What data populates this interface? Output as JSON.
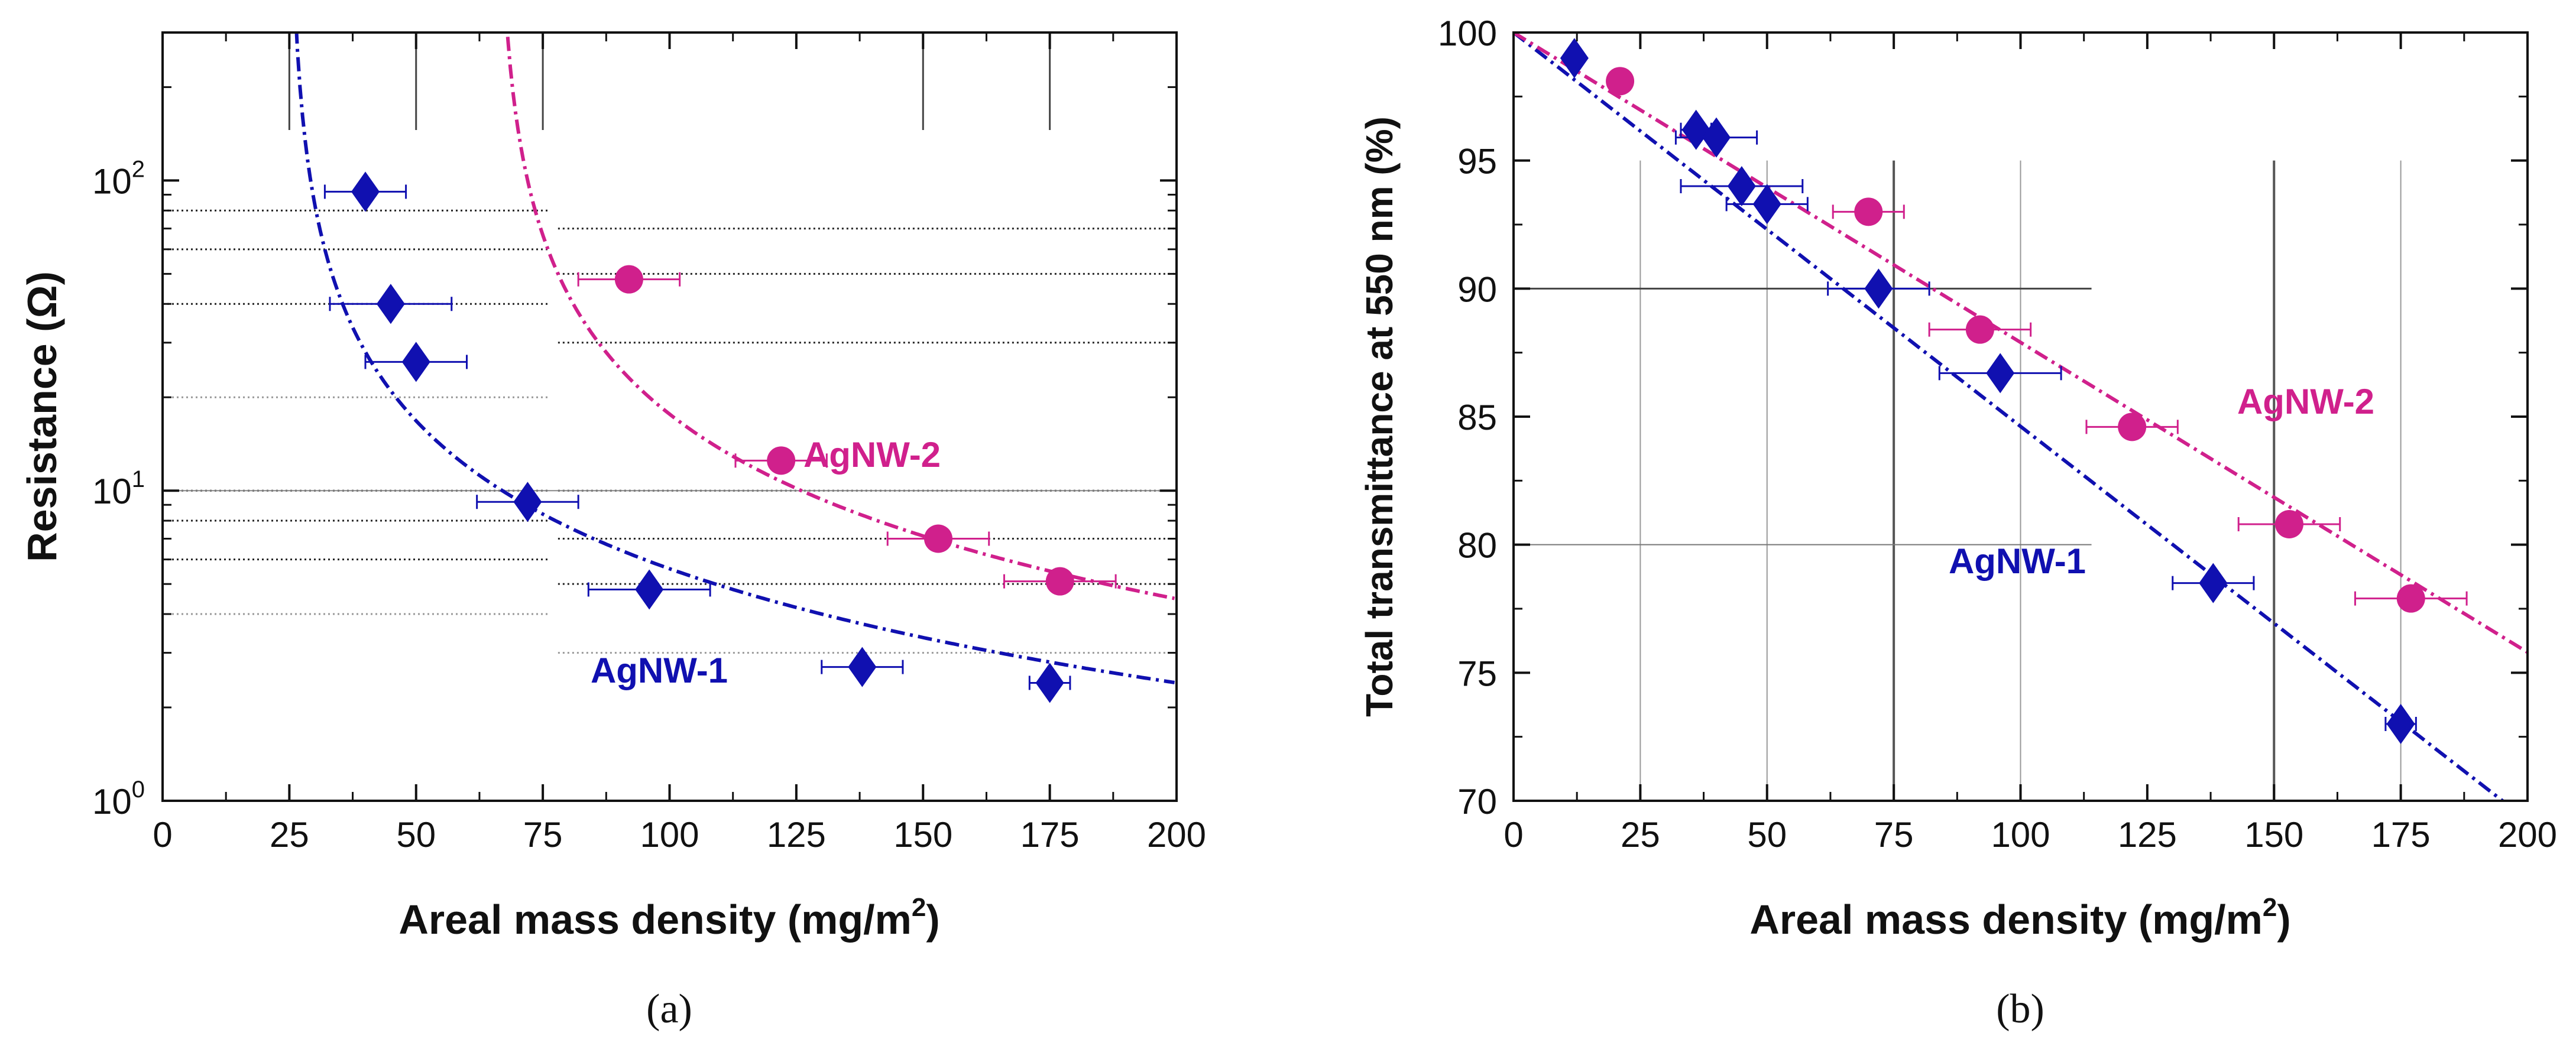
{
  "chart_data": [
    {
      "type": "scatter",
      "panel": "a",
      "caption": "(a)",
      "xlabel": "Areal mass density (mg/m",
      "xlabel_sup": "2",
      "xlabel_close": ")",
      "ylabel": "Resistance (Ω)",
      "yscale": "log",
      "xlim": [
        0,
        200
      ],
      "ylim": [
        1,
        300
      ],
      "x_ticks": [
        "0",
        "25",
        "50",
        "75",
        "100",
        "125",
        "150",
        "175",
        "200"
      ],
      "y_ticks": [
        {
          "base": "10",
          "exp": "0",
          "value": 1
        },
        {
          "base": "10",
          "exp": "1",
          "value": 10
        },
        {
          "base": "10",
          "exp": "2",
          "value": 100
        }
      ],
      "series": [
        {
          "name": "AgNW-1",
          "label": "AgNW-1",
          "color": "#1010b0",
          "marker": "diamond",
          "points": [
            {
              "x": 40,
              "y": 92,
              "xerr": 8
            },
            {
              "x": 45,
              "y": 40,
              "xerr": 12
            },
            {
              "x": 50,
              "y": 26,
              "xerr": 10
            },
            {
              "x": 72,
              "y": 9.2,
              "xerr": 10
            },
            {
              "x": 96,
              "y": 4.8,
              "xerr": 12
            },
            {
              "x": 138,
              "y": 2.7,
              "xerr": 8
            },
            {
              "x": 175,
              "y": 2.4,
              "xerr": 4
            }
          ],
          "fit": {
            "form": "y = a/(x - x0)",
            "a": 420,
            "x0": 25
          }
        },
        {
          "name": "AgNW-2",
          "label": "AgNW-2",
          "color": "#d0208c",
          "marker": "circle",
          "points": [
            {
              "x": 92,
              "y": 48,
              "xerr": 10
            },
            {
              "x": 122,
              "y": 12.5,
              "xerr": 9
            },
            {
              "x": 153,
              "y": 7.0,
              "xerr": 10
            },
            {
              "x": 177,
              "y": 5.1,
              "xerr": 11
            }
          ],
          "fit": {
            "form": "y = a/(x - x0)",
            "a": 600,
            "x0": 66
          }
        }
      ]
    },
    {
      "type": "scatter",
      "panel": "b",
      "caption": "(b)",
      "xlabel": "Areal mass density (mg/m",
      "xlabel_sup": "2",
      "xlabel_close": ")",
      "ylabel": "Total transmittance at 550 nm (%)",
      "yscale": "linear",
      "xlim": [
        0,
        200
      ],
      "ylim": [
        70,
        100
      ],
      "x_ticks": [
        "0",
        "25",
        "50",
        "75",
        "100",
        "125",
        "150",
        "175",
        "200"
      ],
      "y_ticks": [
        "70",
        "75",
        "80",
        "85",
        "90",
        "95",
        "100"
      ],
      "series": [
        {
          "name": "AgNW-1",
          "label": "AgNW-1",
          "color": "#1010b0",
          "marker": "diamond",
          "points": [
            {
              "x": 12,
              "y": 99.0,
              "xerr": 0
            },
            {
              "x": 36,
              "y": 96.2,
              "xerr": 3
            },
            {
              "x": 40,
              "y": 95.9,
              "xerr": 8
            },
            {
              "x": 45,
              "y": 94.0,
              "xerr": 12
            },
            {
              "x": 50,
              "y": 93.3,
              "xerr": 8
            },
            {
              "x": 72,
              "y": 90.0,
              "xerr": 10
            },
            {
              "x": 96,
              "y": 86.7,
              "xerr": 12
            },
            {
              "x": 138,
              "y": 78.5,
              "xerr": 8
            },
            {
              "x": 175,
              "y": 73.0,
              "xerr": 3
            }
          ],
          "fit": {
            "form": "linear",
            "intercept": 100,
            "slope": -0.1538
          }
        },
        {
          "name": "AgNW-2",
          "label": "AgNW-2",
          "color": "#d0208c",
          "marker": "circle",
          "points": [
            {
              "x": 21,
              "y": 98.1,
              "xerr": 0
            },
            {
              "x": 70,
              "y": 93.0,
              "xerr": 7
            },
            {
              "x": 92,
              "y": 88.4,
              "xerr": 10
            },
            {
              "x": 122,
              "y": 84.6,
              "xerr": 9
            },
            {
              "x": 153,
              "y": 80.8,
              "xerr": 10
            },
            {
              "x": 177,
              "y": 77.9,
              "xerr": 11
            }
          ],
          "fit": {
            "form": "linear",
            "intercept": 100,
            "slope": -0.121
          }
        }
      ]
    }
  ]
}
